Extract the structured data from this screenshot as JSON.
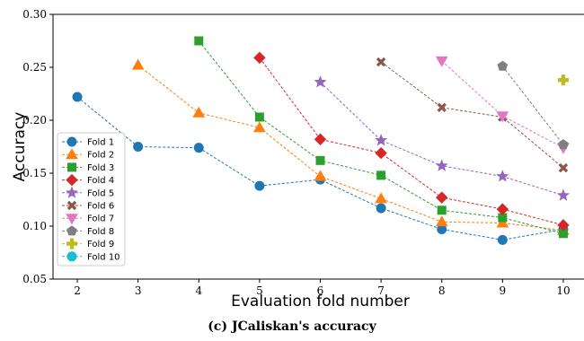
{
  "caption": "(c) JCaliskan's accuracy",
  "chart_data": {
    "type": "line",
    "xlabel": "Evaluation fold number",
    "ylabel": "Accuracy",
    "xlim": [
      1.6,
      10.4
    ],
    "ylim": [
      0.05,
      0.3
    ],
    "xticks": [
      2,
      3,
      4,
      5,
      6,
      7,
      8,
      9,
      10
    ],
    "yticks": [
      "0.05",
      "0.10",
      "0.15",
      "0.20",
      "0.25",
      "0.30"
    ],
    "legend_position": "lower-left",
    "series": [
      {
        "name": "Fold 1",
        "color": "#1f77b4",
        "marker": "circle",
        "x": [
          2,
          3,
          4,
          5,
          6,
          7,
          8,
          9,
          10
        ],
        "y": [
          0.222,
          0.175,
          0.174,
          0.138,
          0.144,
          0.117,
          0.097,
          0.087,
          0.097
        ]
      },
      {
        "name": "Fold 2",
        "color": "#ff7f0e",
        "marker": "triangle-up",
        "x": [
          3,
          4,
          5,
          6,
          7,
          8,
          9,
          10
        ],
        "y": [
          0.252,
          0.207,
          0.193,
          0.147,
          0.126,
          0.104,
          0.103,
          0.096
        ]
      },
      {
        "name": "Fold 3",
        "color": "#2ca02c",
        "marker": "square",
        "x": [
          4,
          5,
          6,
          7,
          8,
          9,
          10
        ],
        "y": [
          0.275,
          0.203,
          0.162,
          0.148,
          0.115,
          0.108,
          0.093
        ]
      },
      {
        "name": "Fold 4",
        "color": "#d62728",
        "marker": "diamond",
        "x": [
          5,
          6,
          7,
          8,
          9,
          10
        ],
        "y": [
          0.259,
          0.182,
          0.169,
          0.127,
          0.116,
          0.101
        ]
      },
      {
        "name": "Fold 5",
        "color": "#9467bd",
        "marker": "star",
        "x": [
          6,
          7,
          8,
          9,
          10
        ],
        "y": [
          0.236,
          0.181,
          0.157,
          0.147,
          0.129
        ]
      },
      {
        "name": "Fold 6",
        "color": "#8c564b",
        "marker": "x",
        "x": [
          7,
          8,
          9,
          10
        ],
        "y": [
          0.255,
          0.212,
          0.203,
          0.155
        ]
      },
      {
        "name": "Fold 7",
        "color": "#e377c2",
        "marker": "triangle-down",
        "x": [
          8,
          9,
          10
        ],
        "y": [
          0.256,
          0.204,
          0.174
        ]
      },
      {
        "name": "Fold 8",
        "color": "#7f7f7f",
        "marker": "pentagon",
        "x": [
          9,
          10
        ],
        "y": [
          0.251,
          0.177
        ]
      },
      {
        "name": "Fold 9",
        "color": "#bcbd22",
        "marker": "plus",
        "x": [
          10
        ],
        "y": [
          0.238
        ]
      },
      {
        "name": "Fold 10",
        "color": "#17becf",
        "marker": "circle",
        "x": [],
        "y": []
      }
    ]
  }
}
